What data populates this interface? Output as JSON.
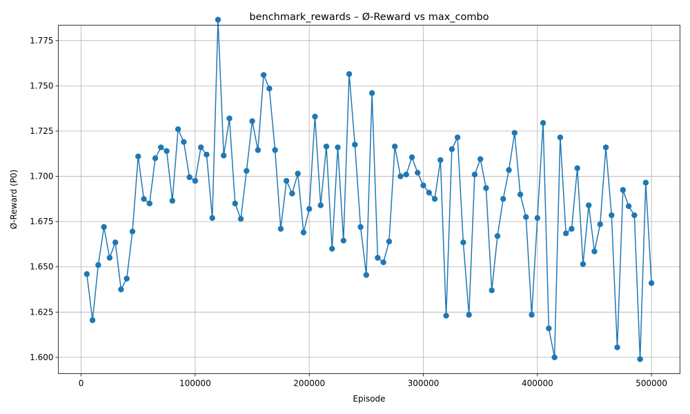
{
  "chart_data": {
    "type": "line",
    "title": "benchmark_rewards – Ø-Reward vs max_combo",
    "xlabel": "Episode",
    "ylabel": "Ø-Reward (P0)",
    "xlim": [
      -20000,
      525000
    ],
    "ylim": [
      1.591,
      1.7835
    ],
    "grid": true,
    "color": "#1f77b4",
    "marker": "circle",
    "xticks": [
      0,
      100000,
      200000,
      300000,
      400000,
      500000
    ],
    "xtick_labels": [
      "0",
      "100000",
      "200000",
      "300000",
      "400000",
      "500000"
    ],
    "yticks": [
      1.6,
      1.625,
      1.65,
      1.675,
      1.7,
      1.725,
      1.75,
      1.775
    ],
    "ytick_labels": [
      "1.600",
      "1.625",
      "1.650",
      "1.675",
      "1.700",
      "1.725",
      "1.750",
      "1.775"
    ],
    "series": [
      {
        "x": [
          5000,
          10000,
          15000,
          20000,
          25000,
          30000,
          35000,
          40000,
          45000,
          50000,
          55000,
          60000,
          65000,
          70000,
          75000,
          80000,
          85000,
          90000,
          95000,
          100000,
          105000,
          110000,
          115000,
          120000,
          125000,
          130000,
          135000,
          140000,
          145000,
          150000,
          155000,
          160000,
          165000,
          170000,
          175000,
          180000,
          185000,
          190000,
          195000,
          200000,
          205000,
          210000,
          215000,
          220000,
          225000,
          230000,
          235000,
          240000,
          245000,
          250000,
          255000,
          260000,
          265000,
          270000,
          275000,
          280000,
          285000,
          290000,
          295000,
          300000,
          305000,
          310000,
          315000,
          320000,
          325000,
          330000,
          335000,
          340000,
          345000,
          350000,
          355000,
          360000,
          365000,
          370000,
          375000,
          380000,
          385000,
          390000,
          395000,
          400000,
          405000,
          410000,
          415000,
          420000,
          425000,
          430000,
          435000,
          440000,
          445000,
          450000,
          455000,
          460000,
          465000,
          470000,
          475000,
          480000,
          485000,
          490000,
          495000,
          500000
        ],
        "y": [
          1.646,
          1.6205,
          1.651,
          1.672,
          1.655,
          1.6635,
          1.6375,
          1.6435,
          1.6695,
          1.711,
          1.6875,
          1.685,
          1.71,
          1.716,
          1.714,
          1.6865,
          1.726,
          1.719,
          1.6995,
          1.6975,
          1.716,
          1.712,
          1.677,
          1.7865,
          1.7115,
          1.732,
          1.685,
          1.6765,
          1.703,
          1.7305,
          1.7145,
          1.756,
          1.7485,
          1.7145,
          1.671,
          1.6975,
          1.6905,
          1.7015,
          1.669,
          1.682,
          1.733,
          1.684,
          1.7165,
          1.66,
          1.716,
          1.6645,
          1.7565,
          1.7175,
          1.672,
          1.6455,
          1.746,
          1.655,
          1.6525,
          1.664,
          1.7165,
          1.7,
          1.701,
          1.7105,
          1.702,
          1.695,
          1.691,
          1.6875,
          1.709,
          1.623,
          1.715,
          1.7215,
          1.6635,
          1.6235,
          1.701,
          1.7095,
          1.6935,
          1.637,
          1.667,
          1.6875,
          1.7035,
          1.724,
          1.69,
          1.6775,
          1.6235,
          1.677,
          1.7295,
          1.616,
          1.6,
          1.7215,
          1.6685,
          1.671,
          1.7045,
          1.6515,
          1.684,
          1.6585,
          1.6735,
          1.716,
          1.6785,
          1.6055,
          1.6925,
          1.6835,
          1.6785,
          1.599,
          1.6965,
          1.641
        ]
      }
    ]
  }
}
